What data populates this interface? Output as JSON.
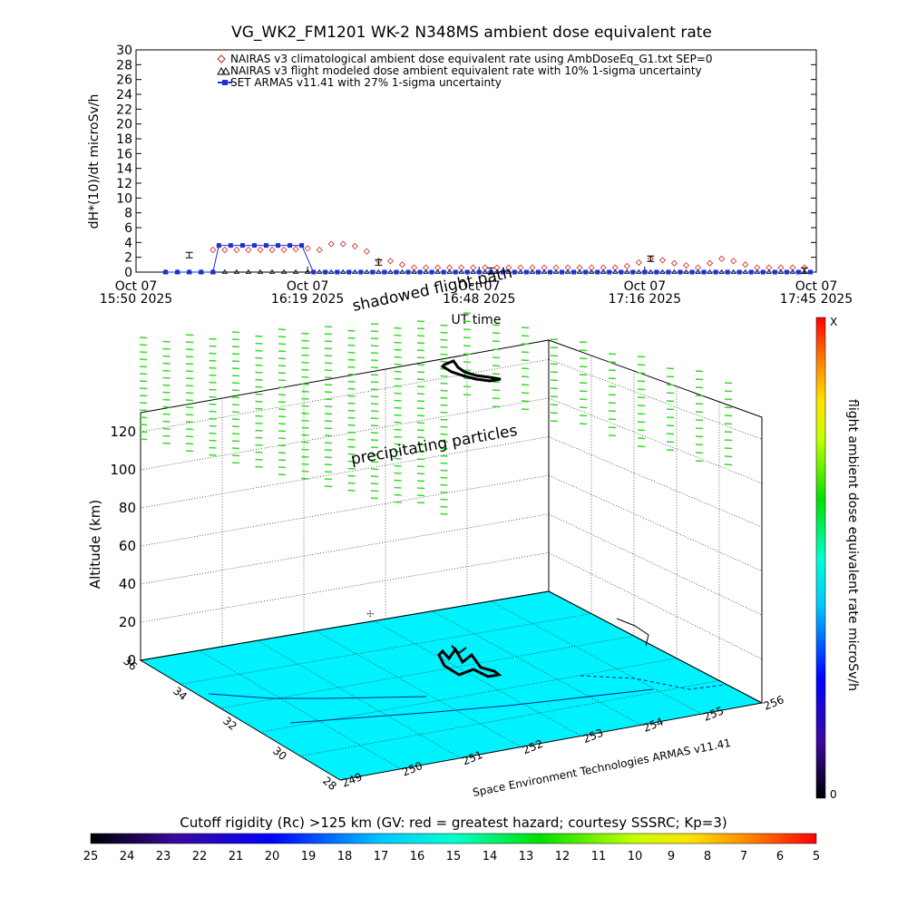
{
  "title": "VG_WK2_FM1201   WK-2 N348MS ambient dose equivalent rate",
  "colors": {
    "nairas_clim": "#cc2222",
    "armas": "#1f2fd6",
    "ground": "#00f2ff",
    "track": "#000000",
    "particles": "#33dd22"
  },
  "chart_data": [
    {
      "type": "line",
      "title": "VG_WK2_FM1201   WK-2 N348MS ambient dose equivalent rate",
      "ylabel": "dH*(10)/dt microSv/h",
      "xlabel": "UT time",
      "ylim": [
        0,
        30
      ],
      "y_ticks": [
        "0",
        "2",
        "4",
        "6",
        "8",
        "10",
        "12",
        "14",
        "16",
        "18",
        "20",
        "22",
        "24",
        "26",
        "28",
        "30"
      ],
      "x_range_minutes": [
        0,
        115
      ],
      "x_ticks": [
        {
          "line1": "Oct 07",
          "line2": "15:50 2025",
          "t": 0
        },
        {
          "line1": "Oct 07",
          "line2": "16:19 2025",
          "t": 29
        },
        {
          "line1": "Oct 07",
          "line2": "16:48 2025",
          "t": 58
        },
        {
          "line1": "Oct 07",
          "line2": "17:16 2025",
          "t": 86
        },
        {
          "line1": "Oct 07",
          "line2": "17:45 2025",
          "t": 115
        }
      ],
      "legend_position": "top",
      "legend": [
        "NAIRAS v3 climatological ambient dose equivalent rate using AmbDoseEq_G1.txt SEP=0",
        "NAIRAS v3 flight modeled dose ambient equivalent rate with 10% 1-sigma uncertainty",
        "SET ARMAS v11.41 with 27% 1-sigma uncertainty"
      ],
      "series": [
        {
          "name": "NAIRAS v3 climatological ambient dose equivalent rate using AmbDoseEq_G1.txt SEP=0",
          "marker": "diamond",
          "t": [
            13,
            15,
            17,
            19,
            21,
            23,
            25,
            27,
            29,
            31,
            33,
            35,
            37,
            39,
            41,
            43,
            45,
            47,
            49,
            51,
            53,
            55,
            57,
            59,
            61,
            63,
            65,
            67,
            69,
            71,
            73,
            75,
            77,
            79,
            81,
            83,
            85,
            87,
            89,
            91,
            93,
            95,
            97,
            99,
            101,
            103,
            105,
            107,
            109,
            111,
            113
          ],
          "values": [
            3.0,
            3.0,
            3.0,
            3.0,
            3.0,
            3.0,
            3.0,
            3.1,
            3.2,
            3.0,
            3.8,
            3.8,
            3.5,
            2.8,
            1.5,
            1.5,
            1.0,
            0.6,
            0.6,
            0.6,
            0.6,
            0.6,
            0.6,
            0.6,
            0.6,
            0.6,
            0.6,
            0.6,
            0.6,
            0.6,
            0.6,
            0.6,
            0.6,
            0.6,
            0.6,
            0.8,
            1.3,
            1.8,
            1.6,
            1.2,
            0.9,
            0.6,
            1.2,
            1.8,
            1.5,
            1.0,
            0.6,
            0.6,
            0.6,
            0.6,
            0.6
          ]
        },
        {
          "name": "NAIRAS v3 flight modeled dose ambient equivalent rate with 10% 1-sigma uncertainty",
          "marker": "triangle",
          "t": [
            5,
            7,
            9,
            11,
            13,
            15,
            17,
            19,
            21,
            23,
            25,
            27,
            29,
            31,
            33,
            35,
            37,
            39,
            41,
            43,
            45,
            47,
            49,
            51,
            53,
            55,
            57,
            59,
            61,
            63,
            65,
            67,
            69,
            71,
            73,
            75,
            77,
            79,
            81,
            83,
            85,
            87,
            89,
            91,
            93,
            95,
            97,
            99,
            101,
            103,
            105,
            107,
            109,
            111,
            113
          ],
          "values": [
            0,
            0,
            0,
            0,
            0,
            0,
            0,
            0,
            0,
            0,
            0,
            0,
            0,
            0,
            0,
            0,
            0,
            0,
            0,
            0,
            0,
            0,
            0,
            0,
            0,
            0,
            0,
            0,
            0,
            0,
            0,
            0,
            0,
            0,
            0,
            0,
            0,
            0,
            0,
            0,
            0,
            0,
            0,
            0,
            0,
            0,
            0,
            0,
            0,
            0,
            0,
            0,
            0,
            0,
            0
          ]
        },
        {
          "name": "SET ARMAS v11.41 with 27% 1-sigma uncertainty",
          "marker": "square",
          "t": [
            5,
            7,
            9,
            11,
            13,
            14,
            16,
            18,
            20,
            22,
            24,
            26,
            28,
            30,
            32,
            34,
            36,
            38,
            40,
            42,
            44,
            46,
            48,
            50,
            52,
            54,
            56,
            58,
            60,
            62,
            64,
            66,
            68,
            70,
            72,
            74,
            76,
            78,
            80,
            82,
            84,
            86,
            88,
            90,
            92,
            94,
            96,
            98,
            100,
            102,
            104,
            106,
            108,
            110,
            112,
            114
          ],
          "values": [
            0,
            0,
            0,
            0,
            0,
            3.6,
            3.6,
            3.6,
            3.6,
            3.6,
            3.6,
            3.6,
            3.6,
            0,
            0,
            0,
            0,
            0,
            0,
            0,
            0,
            0,
            0,
            0,
            0,
            0,
            0,
            0,
            0,
            0,
            0,
            0,
            0,
            0,
            0,
            0,
            0,
            0,
            0,
            0,
            0,
            0,
            0,
            0,
            0,
            0,
            0,
            0,
            0,
            0,
            0,
            0,
            0,
            0,
            0,
            0
          ]
        }
      ],
      "error_bars": [
        {
          "t": 9,
          "value": 2.3
        },
        {
          "t": 41,
          "value": 1.3
        },
        {
          "t": 60,
          "value": 0.2
        },
        {
          "t": 87,
          "value": 1.8
        },
        {
          "t": 113,
          "value": 0.2
        }
      ]
    },
    {
      "type": "scatter",
      "title": "",
      "zlabel": "Altitude (km)",
      "z_ticks": [
        "0",
        "20",
        "40",
        "60",
        "80",
        "100",
        "120"
      ],
      "lon_ticks": [
        "249",
        "250",
        "251",
        "252",
        "253",
        "254",
        "255",
        "256"
      ],
      "lat_ticks": [
        "28",
        "30",
        "32",
        "34",
        "36"
      ],
      "annotations": [
        "shadowed flight path",
        "precipitating particles"
      ],
      "colorbar": {
        "label": "flight ambient dose equivalent rate microSv/h",
        "max_label": "X",
        "min_label": "0"
      },
      "credit": "Space Environment Technologies ARMAS v11.41"
    },
    {
      "type": "heatmap",
      "title": "Cutoff rigidity (Rc) >125 km (GV: red = greatest hazard; courtesy SSSRC; Kp=3)",
      "ticks": [
        "25",
        "24",
        "23",
        "22",
        "21",
        "20",
        "19",
        "18",
        "17",
        "16",
        "15",
        "14",
        "13",
        "12",
        "11",
        "10",
        "9",
        "8",
        "7",
        "6",
        "5"
      ]
    }
  ]
}
